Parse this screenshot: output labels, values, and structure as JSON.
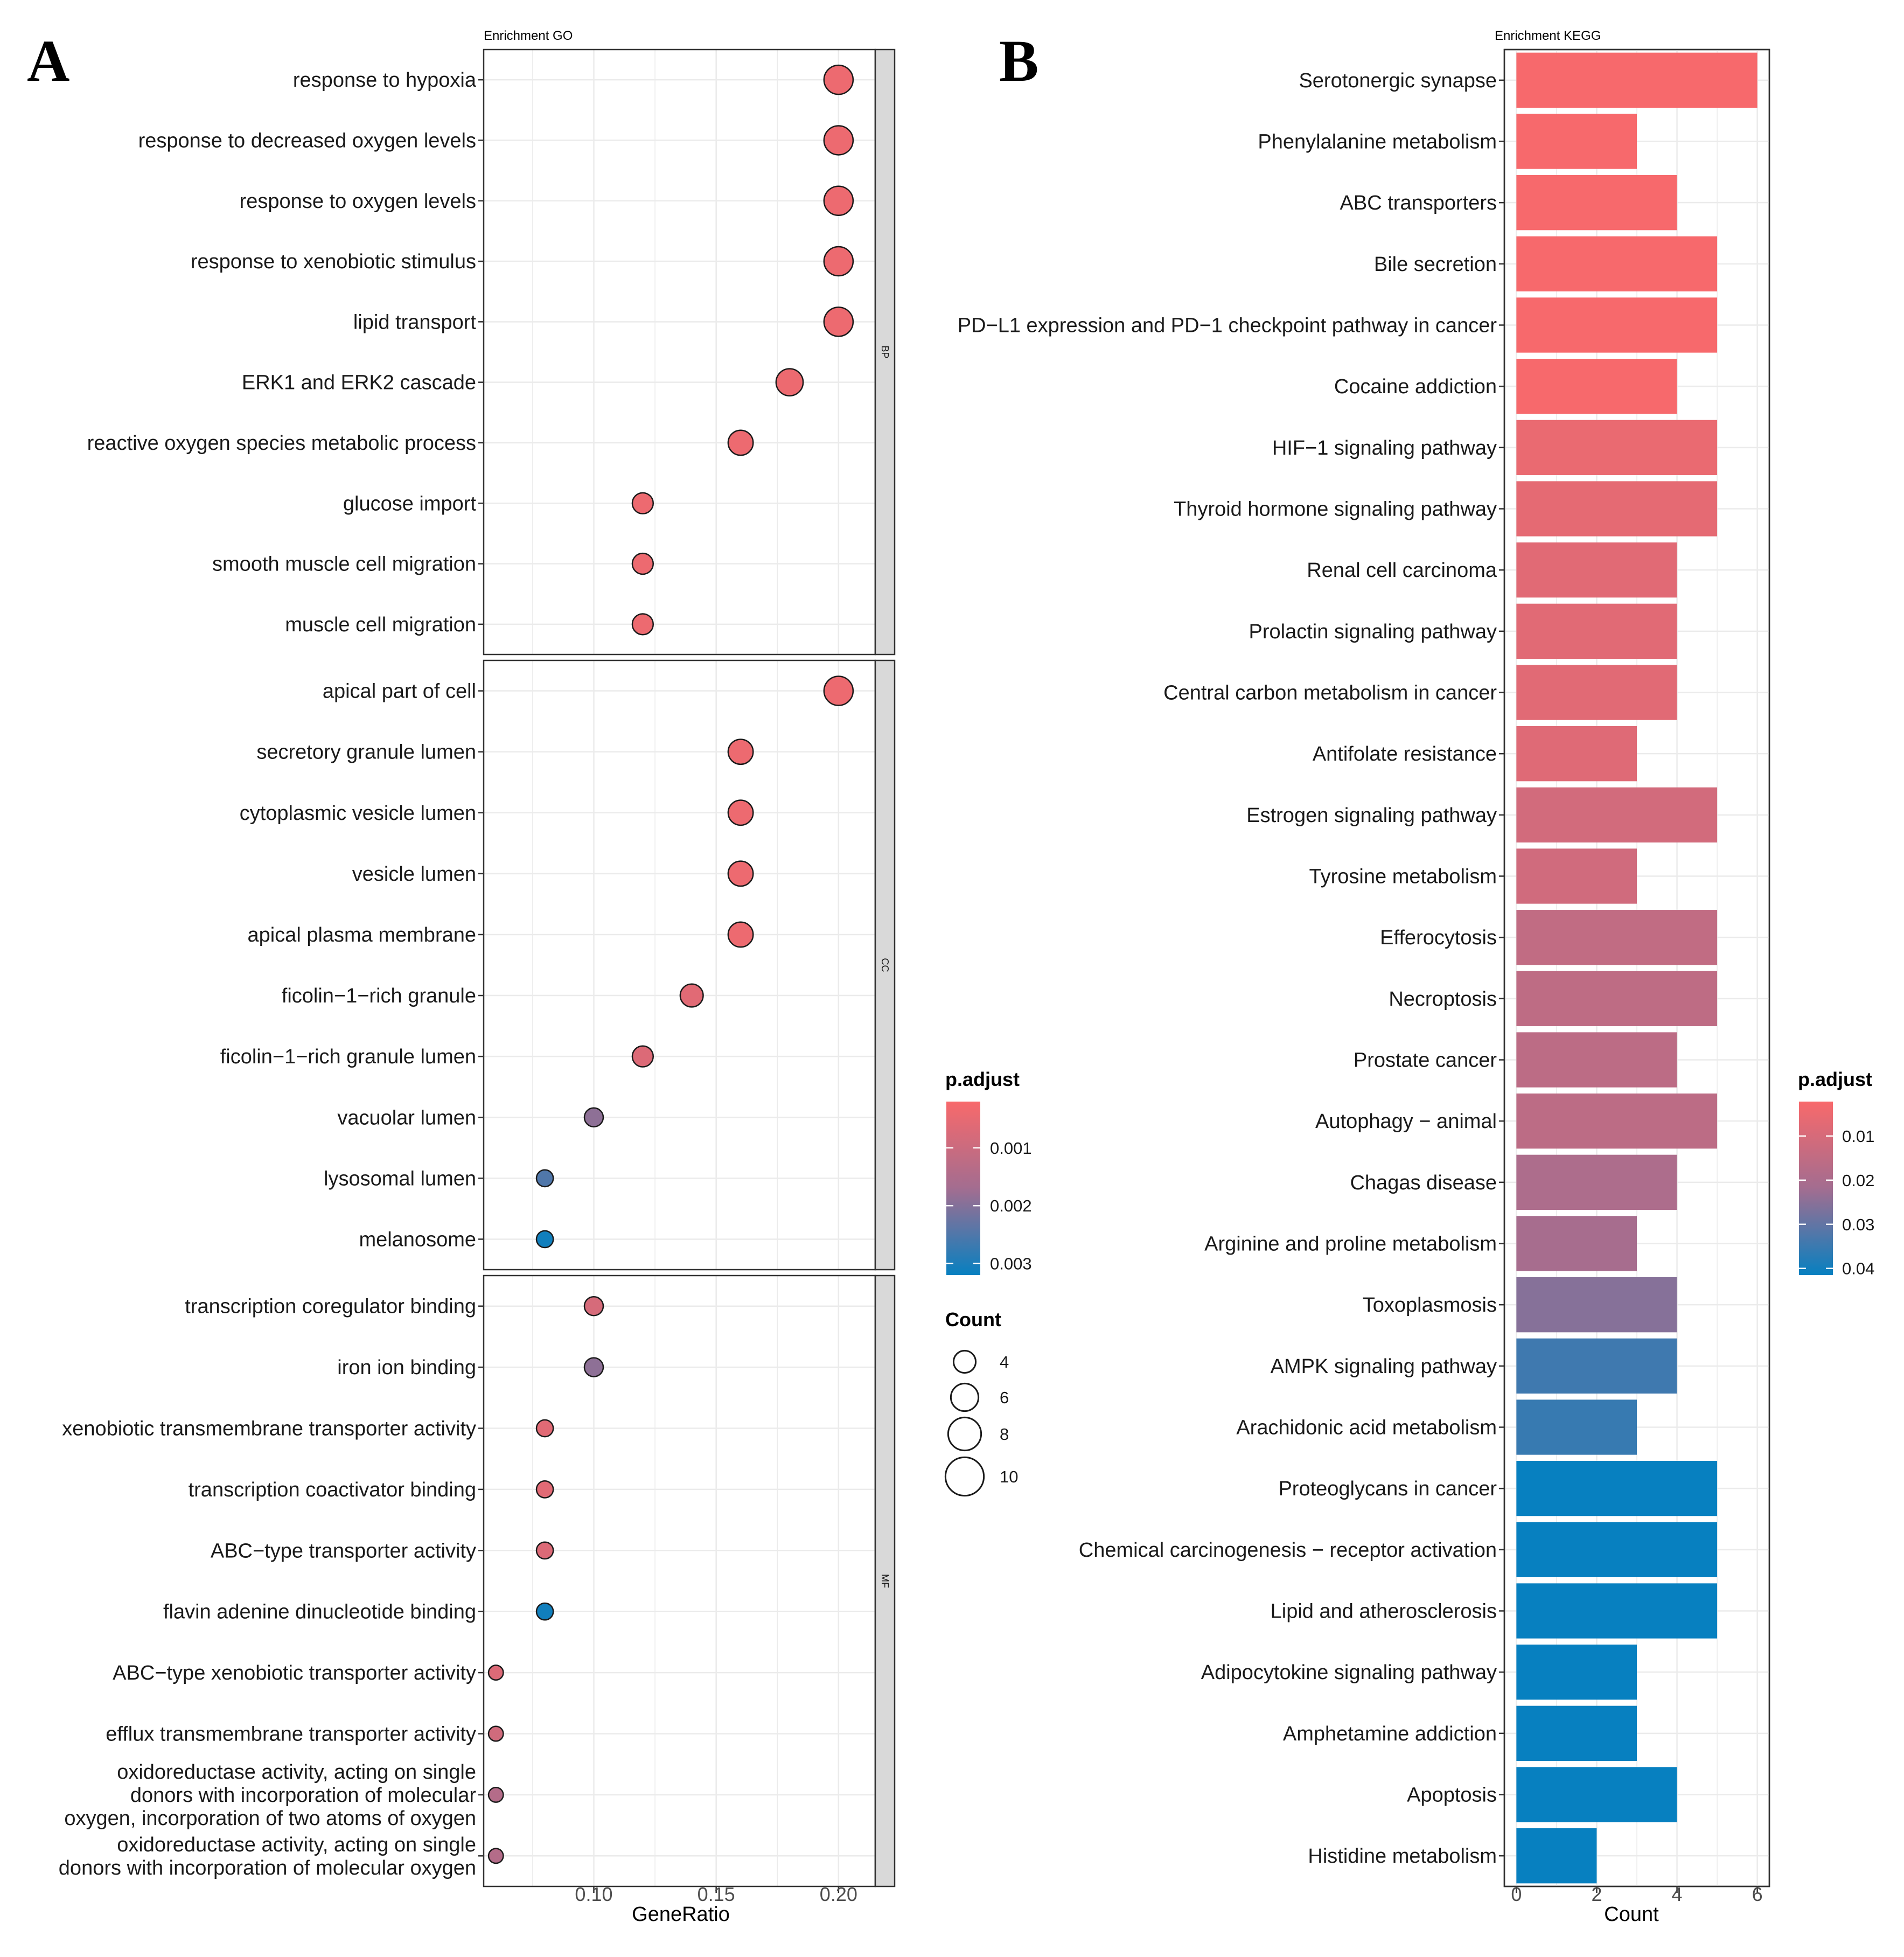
{
  "panel_a_letter": "A",
  "panel_b_letter": "B",
  "colors": {
    "high": "#F8696B",
    "mid": "#A36D90",
    "low": "#0780C0",
    "strip": "#D9D9D9",
    "grid": "#EBEBEB"
  },
  "chart_data": [
    {
      "type": "scatter",
      "title": "Enrichment GO",
      "xlabel": "GeneRatio",
      "ylabel": "",
      "xlim": [
        0.055,
        0.215
      ],
      "xticks": [
        0.1,
        0.15,
        0.2
      ],
      "xtick_labels": [
        "0.10",
        "0.15",
        "0.20"
      ],
      "grid": true,
      "legend": {
        "position": "right",
        "color_title": "p.adjust",
        "color_ticks": [
          0.001,
          0.002,
          0.003
        ],
        "color_tick_labels": [
          "0.001",
          "0.002",
          "0.003"
        ],
        "color_range": [
          0.0002,
          0.0032
        ],
        "size_title": "Count",
        "size_values": [
          4,
          6,
          8,
          10
        ],
        "size_labels": [
          "4",
          "6",
          "8",
          "10"
        ]
      },
      "facets": [
        {
          "strip": "BP",
          "terms": [
            {
              "label": "response to hypoxia",
              "x": 0.2,
              "count": 10,
              "p": 0.0004
            },
            {
              "label": "response to decreased oxygen levels",
              "x": 0.2,
              "count": 10,
              "p": 0.0004
            },
            {
              "label": "response to oxygen levels",
              "x": 0.2,
              "count": 10,
              "p": 0.0004
            },
            {
              "label": "response to xenobiotic stimulus",
              "x": 0.2,
              "count": 10,
              "p": 0.0004
            },
            {
              "label": "lipid transport",
              "x": 0.2,
              "count": 10,
              "p": 0.0004
            },
            {
              "label": "ERK1 and ERK2 cascade",
              "x": 0.18,
              "count": 9,
              "p": 0.0004
            },
            {
              "label": "reactive oxygen species metabolic process",
              "x": 0.16,
              "count": 8,
              "p": 0.0004
            },
            {
              "label": "glucose import",
              "x": 0.12,
              "count": 6,
              "p": 0.0004
            },
            {
              "label": "smooth muscle cell migration",
              "x": 0.12,
              "count": 6,
              "p": 0.0004
            },
            {
              "label": "muscle cell migration",
              "x": 0.12,
              "count": 6,
              "p": 0.0004
            }
          ]
        },
        {
          "strip": "CC",
          "terms": [
            {
              "label": "apical part of cell",
              "x": 0.2,
              "count": 10,
              "p": 0.0004
            },
            {
              "label": "secretory granule lumen",
              "x": 0.16,
              "count": 8,
              "p": 0.0004
            },
            {
              "label": "cytoplasmic vesicle lumen",
              "x": 0.16,
              "count": 8,
              "p": 0.0004
            },
            {
              "label": "vesicle lumen",
              "x": 0.16,
              "count": 8,
              "p": 0.0004
            },
            {
              "label": "apical plasma membrane",
              "x": 0.16,
              "count": 8,
              "p": 0.0004
            },
            {
              "label": "ficolin−1−rich granule",
              "x": 0.14,
              "count": 7,
              "p": 0.0006
            },
            {
              "label": "ficolin−1−rich granule lumen",
              "x": 0.12,
              "count": 6,
              "p": 0.0007
            },
            {
              "label": "vacuolar lumen",
              "x": 0.1,
              "count": 5,
              "p": 0.0019
            },
            {
              "label": "lysosomal lumen",
              "x": 0.08,
              "count": 4,
              "p": 0.0025
            },
            {
              "label": "melanosome",
              "x": 0.08,
              "count": 4,
              "p": 0.0031
            }
          ]
        },
        {
          "strip": "MF",
          "terms": [
            {
              "label": "transcription coregulator binding",
              "x": 0.1,
              "count": 5,
              "p": 0.0008
            },
            {
              "label": "iron ion binding",
              "x": 0.1,
              "count": 5,
              "p": 0.0019
            },
            {
              "label": "xenobiotic transmembrane transporter activity",
              "x": 0.08,
              "count": 4,
              "p": 0.0006
            },
            {
              "label": "transcription coactivator binding",
              "x": 0.08,
              "count": 4,
              "p": 0.0006
            },
            {
              "label": "ABC−type transporter activity",
              "x": 0.08,
              "count": 4,
              "p": 0.0007
            },
            {
              "label": "flavin adenine dinucleotide binding",
              "x": 0.08,
              "count": 4,
              "p": 0.0031
            },
            {
              "label": "ABC−type xenobiotic transporter activity",
              "x": 0.06,
              "count": 3,
              "p": 0.0007
            },
            {
              "label": "efflux transmembrane transporter activity",
              "x": 0.06,
              "count": 3,
              "p": 0.0009
            },
            {
              "label": "oxidoreductase activity, acting on single donors with incorporation of molecular oxygen, incorporation of two atoms of oxygen",
              "lines": [
                "oxidoreductase activity, acting on single",
                "donors with incorporation of molecular",
                "oxygen, incorporation of two atoms of oxygen"
              ],
              "x": 0.06,
              "count": 3,
              "p": 0.0014
            },
            {
              "label": "oxidoreductase activity, acting on single donors with incorporation of molecular oxygen",
              "lines": [
                "oxidoreductase activity, acting on single",
                "donors with incorporation of molecular oxygen"
              ],
              "x": 0.06,
              "count": 3,
              "p": 0.0014
            }
          ]
        }
      ]
    },
    {
      "type": "bar",
      "orientation": "horizontal",
      "title": "Enrichment KEGG",
      "xlabel": "Count",
      "ylabel": "",
      "xlim": [
        -0.3,
        6.3
      ],
      "xticks": [
        0,
        2,
        4,
        6
      ],
      "xtick_labels": [
        "0",
        "2",
        "4",
        "6"
      ],
      "grid": true,
      "legend": {
        "position": "right",
        "color_title": "p.adjust",
        "color_ticks": [
          0.01,
          0.02,
          0.03,
          0.04
        ],
        "color_tick_labels": [
          "0.01",
          "0.02",
          "0.03",
          "0.04"
        ],
        "color_range": [
          0.0022,
          0.0415
        ]
      },
      "categories": [
        "Serotonergic synapse",
        "Phenylalanine metabolism",
        "ABC transporters",
        "Bile secretion",
        "PD−L1 expression and PD−1 checkpoint pathway in cancer",
        "Cocaine addiction",
        "HIF−1 signaling pathway",
        "Thyroid hormone signaling pathway",
        "Renal cell carcinoma",
        "Prolactin signaling pathway",
        "Central carbon metabolism in cancer",
        "Antifolate resistance",
        "Estrogen signaling pathway",
        "Tyrosine metabolism",
        "Efferocytosis",
        "Necroptosis",
        "Prostate cancer",
        "Autophagy − animal",
        "Chagas disease",
        "Arginine and proline metabolism",
        "Toxoplasmosis",
        "AMPK signaling pathway",
        "Arachidonic acid metabolism",
        "Proteoglycans in cancer",
        "Chemical carcinogenesis − receptor activation",
        "Lipid and atherosclerosis",
        "Adipocytokine signaling pathway",
        "Amphetamine addiction",
        "Apoptosis",
        "Histidine metabolism"
      ],
      "values": [
        6,
        3,
        4,
        5,
        5,
        4,
        5,
        5,
        4,
        4,
        4,
        3,
        5,
        3,
        5,
        5,
        4,
        5,
        4,
        3,
        4,
        4,
        3,
        5,
        5,
        5,
        3,
        3,
        4,
        2
      ],
      "p_adjust": [
        0.0025,
        0.0025,
        0.0025,
        0.0025,
        0.0025,
        0.0025,
        0.0055,
        0.0065,
        0.0075,
        0.0075,
        0.0075,
        0.008,
        0.011,
        0.0115,
        0.015,
        0.0155,
        0.016,
        0.016,
        0.0195,
        0.021,
        0.0255,
        0.0345,
        0.0355,
        0.0415,
        0.0415,
        0.0415,
        0.0415,
        0.0415,
        0.0415,
        0.0415
      ]
    }
  ]
}
